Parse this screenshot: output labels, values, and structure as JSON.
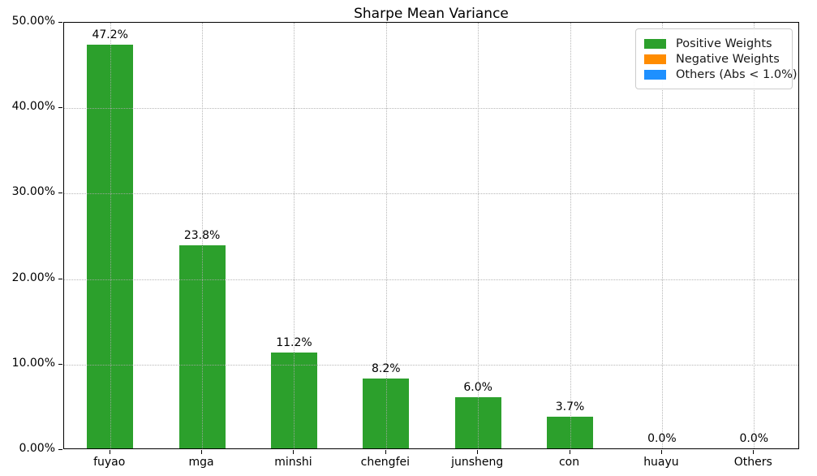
{
  "title": "Sharpe Mean Variance",
  "chart_data": {
    "type": "bar",
    "title": "Sharpe Mean Variance",
    "categories": [
      "fuyao",
      "mga",
      "minshi",
      "chengfei",
      "junsheng",
      "con",
      "huayu",
      "Others"
    ],
    "values": [
      47.2,
      23.8,
      11.2,
      8.2,
      6.0,
      3.7,
      0.0,
      0.0
    ],
    "bar_labels": [
      "47.2%",
      "23.8%",
      "11.2%",
      "8.2%",
      "6.0%",
      "3.7%",
      "0.0%",
      "0.0%"
    ],
    "xlabel": "",
    "ylabel": "",
    "ylim": [
      0,
      50
    ],
    "ytick_values": [
      0,
      10,
      20,
      30,
      40,
      50
    ],
    "ytick_labels": [
      "0.00%",
      "10.00%",
      "20.00%",
      "30.00%",
      "40.00%",
      "50.00%"
    ],
    "grid": "dotted, both axes, drawn above bars",
    "bar_color": "#2ca02c",
    "legend": {
      "position": "upper right",
      "entries": [
        {
          "label": "Positive Weights",
          "color": "#2ca02c"
        },
        {
          "label": "Negative Weights",
          "color": "#ff8c00"
        },
        {
          "label": "Others (Abs < 1.0%)",
          "color": "#1e90ff"
        }
      ]
    }
  },
  "colors": {
    "background": "#ffffff",
    "spine": "#000000",
    "gridline": "#ababab",
    "text": "#000000",
    "legend_border": "#cccccc"
  }
}
